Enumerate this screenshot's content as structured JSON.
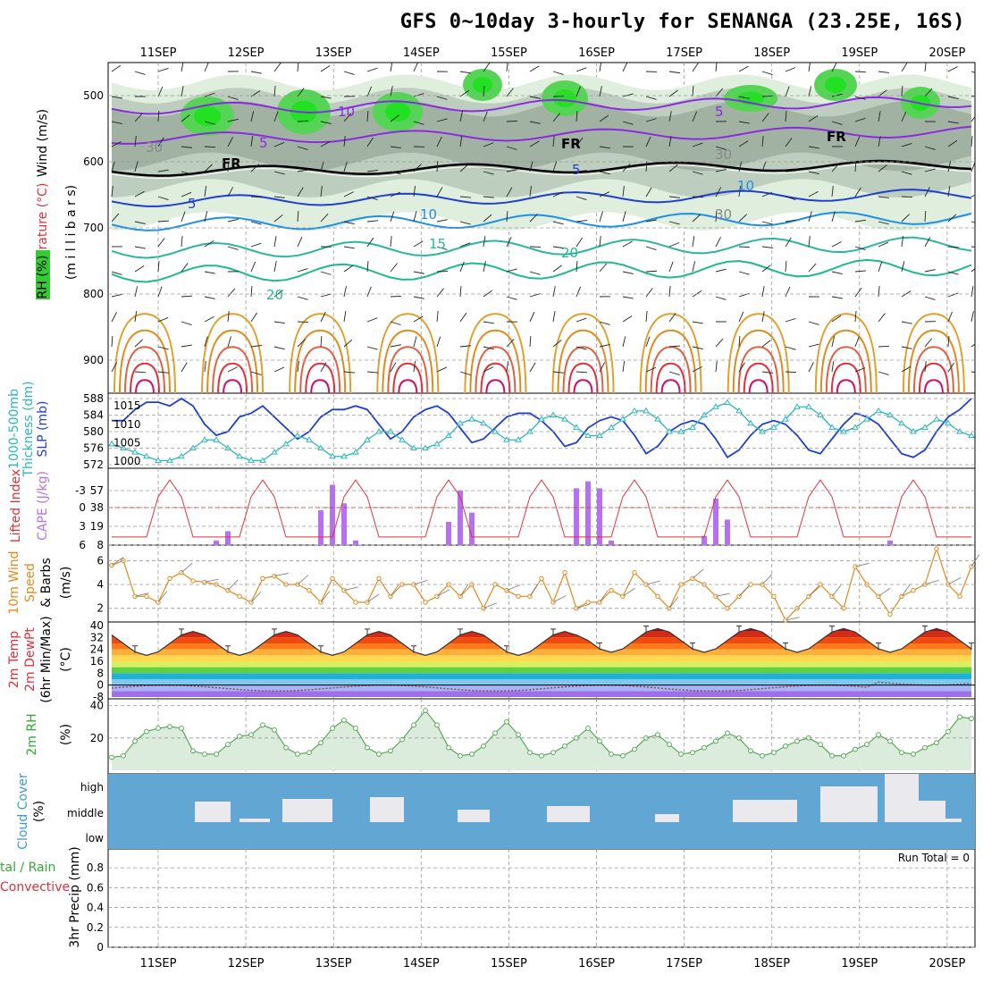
{
  "title": "GFS 0~10day 3-hourly for SENANGA (23.25E, 16S)",
  "dates": [
    "11SEP",
    "12SEP",
    "13SEP",
    "14SEP",
    "15SEP",
    "16SEP",
    "17SEP",
    "18SEP",
    "19SEP",
    "20SEP"
  ],
  "colors": {
    "green_rh": "#33cc33",
    "grey": "#aaaaaa",
    "purple": "#8a2be2",
    "blue": "#1f3fd0",
    "cyan": "#2bb6c0",
    "orange": "#e08a1e",
    "red": "#e0303a",
    "cape": "#b670f2",
    "rh2m": "#5aa85a",
    "cloud": "#62a6d4"
  },
  "panels": {
    "upper": {
      "labels": {
        "wind": "Wind (m/s)",
        "temp": "Temperature (°C)",
        "rh": "RH (%)",
        "axis": "(m i l l i b a r s)"
      },
      "ylevels": [
        "500",
        "600",
        "700",
        "800",
        "900"
      ],
      "contour_labels": [
        "10",
        "5",
        "5",
        "FR",
        "FR",
        "FR",
        "5",
        "5",
        "10",
        "10",
        "15",
        "20",
        "20",
        "30",
        "30",
        "30"
      ]
    },
    "slp": {
      "labels": {
        "thick": "1000-500mb",
        "thick2": "Thickness (dm)",
        "slp": "SLP (mb)"
      },
      "left_ticks": [
        "588",
        "584",
        "580",
        "576",
        "572"
      ],
      "right_ticks": [
        "1015",
        "1010",
        "1005",
        "1000"
      ]
    },
    "cape": {
      "labels": {
        "li": "Lifted Index",
        "cape": "CAPE (J/kg)"
      },
      "li_ticks": [
        "-3",
        "0",
        "3",
        "6"
      ],
      "cape_ticks": [
        "57",
        "38",
        "19",
        "8"
      ]
    },
    "wind10": {
      "labels": {
        "a": "10m Wind",
        "b": "Speed",
        "c": "& Barbs",
        "d": "(m/s)"
      },
      "ticks": [
        "6",
        "4",
        "2"
      ]
    },
    "temp2m": {
      "labels": {
        "a": "2m Temp",
        "b": "2m DewPt",
        "c": "(6hr Min/Max)",
        "d": "(°C)"
      },
      "ticks": [
        "40",
        "32",
        "24",
        "16",
        "8",
        "0",
        "-8"
      ]
    },
    "rh2m": {
      "labels": {
        "a": "2m RH",
        "b": "(%)"
      },
      "ticks": [
        "40",
        "20"
      ]
    },
    "cloud": {
      "labels": {
        "a": "Cloud Cover",
        "b": "(%)"
      },
      "levels": [
        "high",
        "middle",
        "low"
      ]
    },
    "precip": {
      "labels": {
        "a": "tal / Rain",
        "b": "Convective",
        "c": "3hr Precip (mm)"
      },
      "ticks": [
        "0.8",
        "0.6",
        "0.4",
        "0.2",
        "0"
      ],
      "run_total": "Run Total = 0"
    }
  },
  "chart_data": [
    {
      "type": "line",
      "title": "SLP (mb)",
      "x_unit": "3-hourly steps from 10 SEP 12Z",
      "ylim": [
        1000,
        1017
      ],
      "series": [
        {
          "name": "SLP",
          "values": [
            1011,
            1011,
            1014,
            1016,
            1016,
            1015,
            1017,
            1015,
            1010,
            1007,
            1008,
            1012,
            1013,
            1015,
            1012,
            1009,
            1006,
            1008,
            1012,
            1014,
            1014,
            1015,
            1014,
            1010,
            1006,
            1008,
            1012,
            1014,
            1015,
            1013,
            1009,
            1005,
            1006,
            1009,
            1012,
            1013,
            1013,
            1011,
            1008,
            1004,
            1005,
            1009,
            1011,
            1012,
            1011,
            1007,
            1002,
            1004,
            1008,
            1010,
            1011,
            1010,
            1006,
            1001,
            1003,
            1007,
            1010,
            1011,
            1010,
            1007,
            1003,
            1002,
            1006,
            1010,
            1013,
            1012,
            1010,
            1006,
            1002,
            1001,
            1003,
            1008,
            1012,
            1014,
            1017
          ]
        }
      ]
    },
    {
      "type": "line",
      "title": "1000-500mb Thickness (dm)",
      "ylim": [
        572,
        588
      ],
      "series": [
        {
          "name": "Thickness",
          "values": [
            577,
            576,
            575,
            574,
            573,
            573,
            574,
            576,
            578,
            578,
            576,
            574,
            573,
            573,
            575,
            577,
            579,
            578,
            576,
            574,
            574,
            575,
            578,
            580,
            580,
            578,
            576,
            576,
            577,
            579,
            582,
            583,
            582,
            580,
            578,
            578,
            580,
            583,
            584,
            583,
            581,
            579,
            579,
            581,
            583,
            585,
            585,
            583,
            580,
            580,
            581,
            584,
            586,
            587,
            585,
            582,
            580,
            581,
            583,
            586,
            586,
            584,
            581,
            580,
            581,
            583,
            585,
            584,
            582,
            580,
            581,
            583,
            582,
            580,
            579
          ]
        }
      ]
    },
    {
      "type": "bar",
      "title": "CAPE (J/kg)",
      "series": [
        {
          "name": "CAPE",
          "values": [
            0,
            0,
            0,
            0,
            0,
            0,
            0,
            0,
            0,
            4,
            12,
            0,
            0,
            0,
            0,
            0,
            0,
            0,
            30,
            52,
            36,
            4,
            0,
            0,
            0,
            0,
            0,
            0,
            0,
            20,
            47,
            28,
            0,
            0,
            0,
            0,
            0,
            0,
            0,
            0,
            49,
            55,
            49,
            4,
            0,
            0,
            0,
            0,
            0,
            0,
            0,
            8,
            40,
            22,
            0,
            0,
            0,
            0,
            0,
            0,
            0,
            0,
            0,
            0,
            0,
            0,
            0,
            4,
            0,
            0,
            0,
            0,
            0,
            0,
            0
          ]
        }
      ]
    },
    {
      "type": "line",
      "title": "10m Wind Speed (m/s)",
      "ylim": [
        1,
        7
      ],
      "series": [
        {
          "name": "Speed",
          "values": [
            5.6,
            6,
            3,
            3,
            2.5,
            4.5,
            5,
            4.3,
            4.2,
            4,
            3.5,
            3,
            2.5,
            4.5,
            4.7,
            4,
            4,
            3.5,
            2.5,
            4.5,
            3.5,
            2.5,
            2.5,
            4.5,
            3,
            4,
            4,
            2.5,
            3,
            4,
            3,
            4,
            2,
            4,
            3.5,
            3,
            3,
            4.5,
            2.5,
            5,
            2,
            2.5,
            2.5,
            3.5,
            3,
            5,
            4,
            3,
            2,
            4,
            4.5,
            4,
            3,
            2,
            3,
            4,
            4,
            3,
            1,
            2,
            3,
            4,
            3,
            2,
            5.5,
            4,
            3,
            1.5,
            3,
            3.5,
            4,
            7,
            4,
            3,
            5.5
          ]
        }
      ]
    },
    {
      "type": "line",
      "title": "2m RH (%)",
      "ylim": [
        0,
        40
      ],
      "series": [
        {
          "name": "RH",
          "values": [
            8,
            9,
            18,
            24,
            26,
            27,
            26,
            12,
            10,
            10,
            16,
            21,
            22,
            28,
            25,
            14,
            10,
            11,
            17,
            26,
            31,
            26,
            14,
            10,
            12,
            19,
            28,
            37,
            28,
            14,
            9,
            10,
            15,
            23,
            30,
            22,
            11,
            9,
            11,
            15,
            20,
            26,
            18,
            10,
            9,
            13,
            20,
            22,
            16,
            10,
            11,
            14,
            18,
            23,
            20,
            12,
            9,
            11,
            15,
            18,
            20,
            16,
            9,
            9,
            13,
            16,
            22,
            18,
            11,
            10,
            14,
            17,
            24,
            33,
            32
          ]
        }
      ]
    },
    {
      "type": "table",
      "title": "Cloud Cover (%)",
      "rows": [
        "high",
        "middle",
        "low"
      ],
      "note": "middle-level cloud segments near 12SEP, 13SEP, 13.5SEP, 14.5SEP, 15.5SEP, 16.7SEP, 17.8SEP, 18.8SEP, 19.6SEP"
    },
    {
      "type": "line",
      "title": "3hr Precip (mm)",
      "ylim": [
        0,
        0.9
      ],
      "series": [
        {
          "name": "Precip",
          "values": [
            0,
            0,
            0,
            0,
            0,
            0,
            0,
            0,
            0,
            0
          ]
        }
      ]
    }
  ]
}
